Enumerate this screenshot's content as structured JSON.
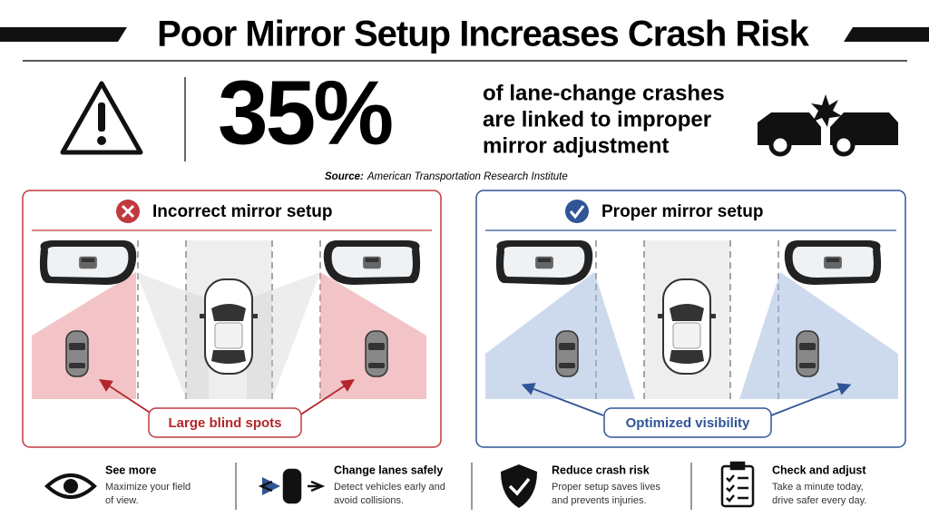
{
  "header": {
    "title": "Poor Mirror Setup Increases Crash Risk"
  },
  "stat": {
    "value": "35%",
    "description_lines": [
      "of lane-change crashes",
      "are linked to improper",
      "mirror adjustment"
    ],
    "source_label": "Source:",
    "source": "American Transportation Research Institute"
  },
  "panels": [
    {
      "title": "Incorrect mirror setup",
      "callout": "Large blind spots"
    },
    {
      "title": "Proper mirror setup",
      "callout": "Optimized visibility"
    }
  ],
  "footer": [
    {
      "title": "See more",
      "lines": [
        "Maximize your field",
        "of view."
      ]
    },
    {
      "title": "Change lanes safely",
      "lines": [
        "Detect vehicles early and",
        "avoid collisions."
      ]
    },
    {
      "title": "Reduce crash risk",
      "lines": [
        "Proper setup saves lives",
        "and prevents injuries."
      ]
    },
    {
      "title": "Check and adjust",
      "lines": [
        "Take a minute today,",
        "drive safer every day."
      ]
    }
  ]
}
